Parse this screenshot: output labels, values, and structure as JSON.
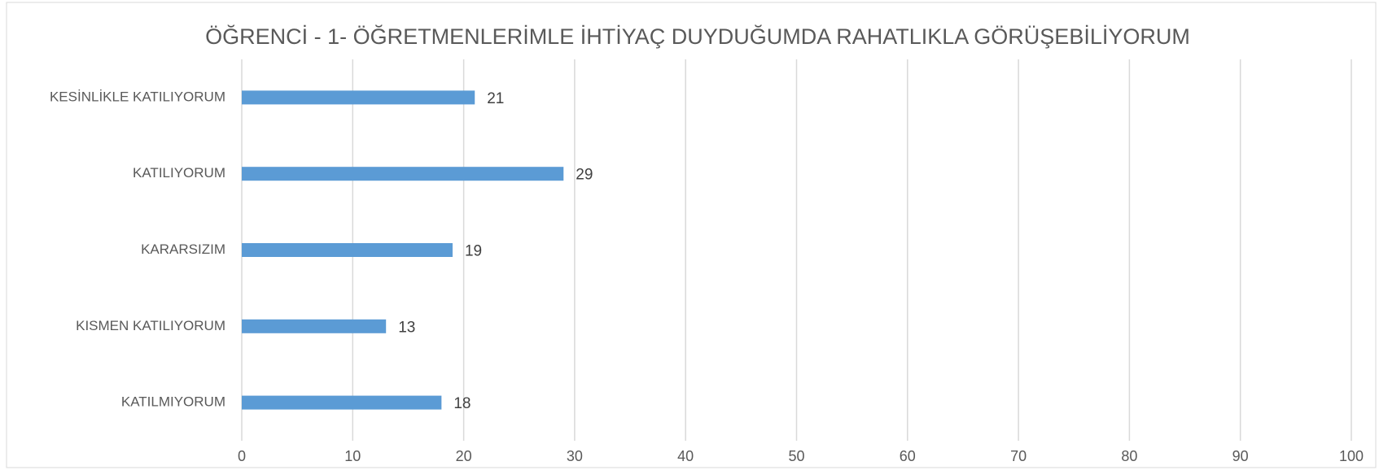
{
  "chart_data": {
    "type": "bar",
    "orientation": "horizontal",
    "title": "ÖĞRENCİ - 1- ÖĞRETMENLERİMLE İHTİYAÇ DUYDUĞUMDA RAHATLIKLA GÖRÜŞEBİLİYORUM",
    "categories": [
      "KESİNLİKLE KATILIYORUM",
      "KATILIYORUM",
      "KARARSIZIM",
      "KISMEN KATILIYORUM",
      "KATILMIYORUM"
    ],
    "values": [
      21,
      29,
      19,
      13,
      18
    ],
    "color": "#5b9bd5",
    "xlim": [
      0,
      100
    ],
    "xticks": [
      0,
      10,
      20,
      30,
      40,
      50,
      60,
      70,
      80,
      90,
      100
    ],
    "grid": true
  }
}
